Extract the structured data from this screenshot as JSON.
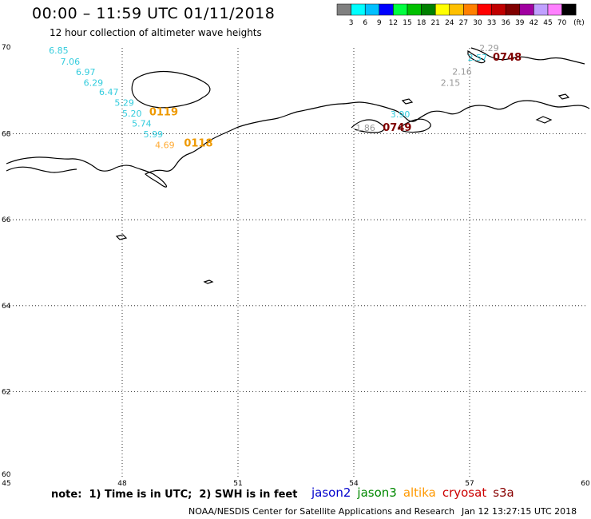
{
  "title": "00:00 – 11:59 UTC 01/11/2018",
  "subtitle": "12 hour collection of altimeter wave heights",
  "legend": {
    "colors": [
      "#808080",
      "#00ffff",
      "#00c0ff",
      "#0000ff",
      "#00ff40",
      "#00c000",
      "#008000",
      "#ffff00",
      "#ffc000",
      "#ff8000",
      "#ff0000",
      "#c00000",
      "#800000",
      "#a000a0",
      "#c0a0ff",
      "#ff80ff",
      "#000000"
    ],
    "labels": [
      "3",
      "6",
      "9",
      "12",
      "15",
      "18",
      "21",
      "24",
      "27",
      "30",
      "33",
      "36",
      "39",
      "42",
      "45",
      "70"
    ],
    "unit": "(ft)"
  },
  "map": {
    "lon_min": 45,
    "lon_max": 60,
    "lat_min": 60,
    "lat_max": 70,
    "lon_ticks": [
      "45",
      "48",
      "51",
      "54",
      "57",
      "60"
    ],
    "lat_ticks": [
      "70",
      "68",
      "66",
      "64",
      "62",
      "60"
    ],
    "grid_lons": [
      48,
      51,
      54,
      57
    ],
    "grid_lats": [
      68,
      66,
      64,
      62
    ]
  },
  "observations": [
    {
      "text": "6.85",
      "color": "#33ccdd",
      "lon": 46.1,
      "lat": 69.87
    },
    {
      "text": "7.06",
      "color": "#33ccdd",
      "lon": 46.4,
      "lat": 69.61
    },
    {
      "text": "6.97",
      "color": "#33ccdd",
      "lon": 46.8,
      "lat": 69.37
    },
    {
      "text": "6.29",
      "color": "#33ccdd",
      "lon": 47.0,
      "lat": 69.12
    },
    {
      "text": "6.47",
      "color": "#33ccdd",
      "lon": 47.4,
      "lat": 68.9
    },
    {
      "text": "5.29",
      "color": "#33ccdd",
      "lon": 47.8,
      "lat": 68.65
    },
    {
      "text": "5.20",
      "color": "#33ccdd",
      "lon": 48.0,
      "lat": 68.4
    },
    {
      "text": "5.74",
      "color": "#33ccdd",
      "lon": 48.25,
      "lat": 68.17
    },
    {
      "text": "5.99",
      "color": "#33ccdd",
      "lon": 48.55,
      "lat": 67.92
    },
    {
      "text": "4.69",
      "color": "#ffaa33",
      "lon": 48.85,
      "lat": 67.67
    },
    {
      "text": "2.29",
      "color": "#999999",
      "lon": 57.25,
      "lat": 69.93
    },
    {
      "text": "2.57",
      "color": "#33ccdd",
      "lon": 56.95,
      "lat": 69.7
    },
    {
      "text": "2.16",
      "color": "#999999",
      "lon": 56.55,
      "lat": 69.38
    },
    {
      "text": "2.15",
      "color": "#999999",
      "lon": 56.25,
      "lat": 69.12
    },
    {
      "text": "3.90",
      "color": "#33ccdd",
      "lon": 54.95,
      "lat": 68.38
    },
    {
      "text": "1.86",
      "color": "#999999",
      "lon": 54.05,
      "lat": 68.07
    }
  ],
  "pass_labels": [
    {
      "text": "0119",
      "color": "#ee9900",
      "lon": 48.7,
      "lat": 68.43
    },
    {
      "text": "0118",
      "color": "#ee9900",
      "lon": 49.6,
      "lat": 67.7
    },
    {
      "text": "0748",
      "color": "#800000",
      "lon": 57.6,
      "lat": 69.7
    },
    {
      "text": "0749",
      "color": "#800000",
      "lon": 54.75,
      "lat": 68.07
    }
  ],
  "note": "note:  1) Time is in UTC;  2) SWH is in feet",
  "satellites": [
    {
      "name": "jason2",
      "color": "#0000cc"
    },
    {
      "name": "jason3",
      "color": "#008800"
    },
    {
      "name": "altika",
      "color": "#ff9900"
    },
    {
      "name": "cryosat",
      "color": "#cc0000"
    },
    {
      "name": "s3a",
      "color": "#880000"
    }
  ],
  "credit": "NOAA/NESDIS Center for Satellite Applications and Research",
  "timestamp": "Jan 12 13:27:15 UTC 2018"
}
